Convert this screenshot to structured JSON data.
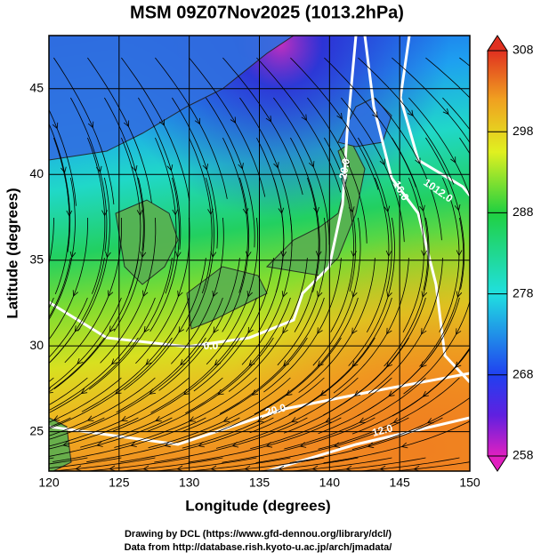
{
  "title": "MSM 09Z07Nov2025 (1013.2hPa)",
  "x_axis": {
    "label": "Longitude (degrees)",
    "lim": [
      120,
      150
    ],
    "ticks": [
      120,
      125,
      130,
      135,
      140,
      145,
      150
    ]
  },
  "y_axis": {
    "label": "Latitude  (degrees)",
    "lim": [
      22.7,
      48.1
    ],
    "ticks": [
      25,
      30,
      35,
      40,
      45
    ]
  },
  "colorbar": {
    "lim": [
      258,
      308
    ],
    "ticks": [
      258,
      268,
      278,
      288,
      298,
      308
    ]
  },
  "contour_labels": [
    "1012.0",
    "16.0",
    "20.0",
    "0.0",
    "20.0",
    "12.0"
  ],
  "credits": [
    "Drawing by DCL (https://www.gfd-dennou.org/library/dcl/)",
    "Data from http://database.rish.kyoto-u.ac.jp/arch/jmadata/"
  ]
}
